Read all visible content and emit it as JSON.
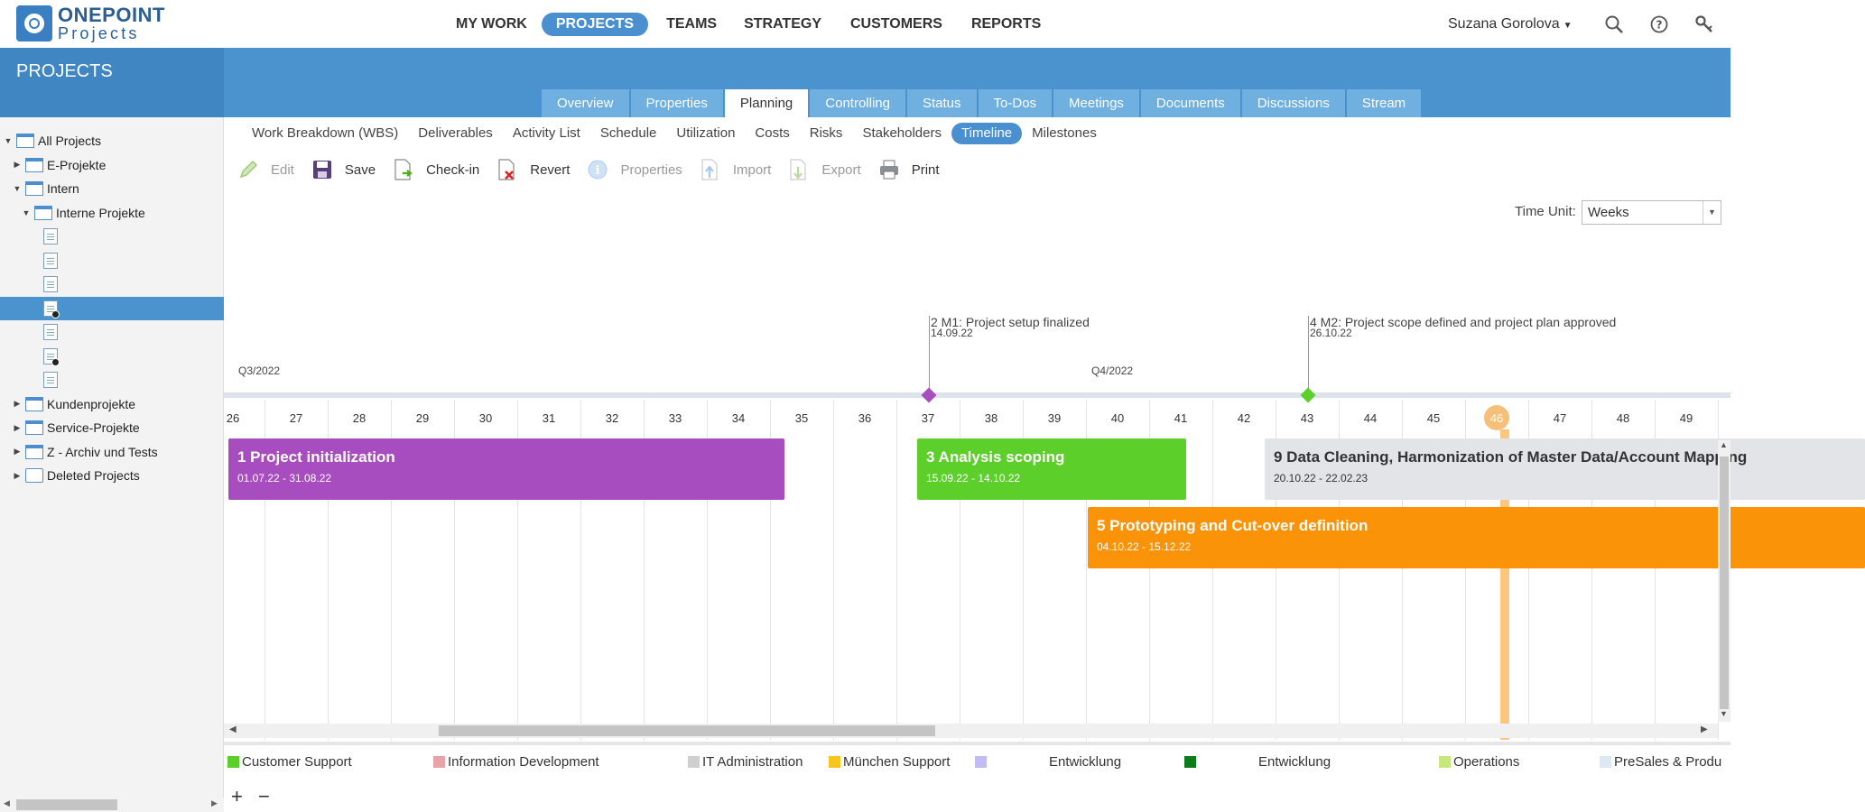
{
  "app": {
    "logo_top": "ONEPOINT",
    "logo_bottom": "Projects"
  },
  "nav": [
    {
      "label": "MY WORK",
      "active": false
    },
    {
      "label": "PROJECTS",
      "active": true
    },
    {
      "label": "TEAMS",
      "active": false
    },
    {
      "label": "STRATEGY",
      "active": false
    },
    {
      "label": "CUSTOMERS",
      "active": false
    },
    {
      "label": "REPORTS",
      "active": false
    }
  ],
  "user": {
    "name": "Suzana Gorolova"
  },
  "section_title": "PROJECTS",
  "tabs": [
    {
      "label": "Overview",
      "active": false
    },
    {
      "label": "Properties",
      "active": false
    },
    {
      "label": "Planning",
      "active": true
    },
    {
      "label": "Controlling",
      "active": false
    },
    {
      "label": "Status",
      "active": false
    },
    {
      "label": "To-Dos",
      "active": false
    },
    {
      "label": "Meetings",
      "active": false
    },
    {
      "label": "Documents",
      "active": false
    },
    {
      "label": "Discussions",
      "active": false
    },
    {
      "label": "Stream",
      "active": false
    }
  ],
  "subtabs": [
    {
      "label": "Work Breakdown (WBS)",
      "active": false
    },
    {
      "label": "Deliverables",
      "active": false
    },
    {
      "label": "Activity List",
      "active": false
    },
    {
      "label": "Schedule",
      "active": false
    },
    {
      "label": "Utilization",
      "active": false
    },
    {
      "label": "Costs",
      "active": false
    },
    {
      "label": "Risks",
      "active": false
    },
    {
      "label": "Stakeholders",
      "active": false
    },
    {
      "label": "Timeline",
      "active": true
    },
    {
      "label": "Milestones",
      "active": false
    }
  ],
  "toolbar": [
    {
      "label": "Edit",
      "icon": "pencil-icon",
      "enabled": false
    },
    {
      "label": "Save",
      "icon": "floppy-disk-icon",
      "enabled": true
    },
    {
      "label": "Check-in",
      "icon": "check-in-icon",
      "enabled": true
    },
    {
      "label": "Revert",
      "icon": "revert-icon",
      "enabled": true
    },
    {
      "label": "Properties",
      "icon": "info-icon",
      "enabled": false
    },
    {
      "label": "Import",
      "icon": "import-icon",
      "enabled": false
    },
    {
      "label": "Export",
      "icon": "export-icon",
      "enabled": false
    },
    {
      "label": "Print",
      "icon": "printer-icon",
      "enabled": true
    }
  ],
  "time_unit": {
    "label": "Time Unit:",
    "value": "Weeks"
  },
  "tree": [
    {
      "label": "All Projects",
      "level": 0,
      "expanded": true,
      "icon": "portfolio",
      "selected": false
    },
    {
      "label": "E-Projekte",
      "level": 1,
      "expanded": false,
      "icon": "portfolio",
      "selected": false
    },
    {
      "label": "Intern",
      "level": 1,
      "expanded": true,
      "icon": "portfolio",
      "selected": false
    },
    {
      "label": "Interne Projekte",
      "level": 2,
      "expanded": true,
      "icon": "portfolio",
      "selected": false
    },
    {
      "label": "",
      "level": 3,
      "icon": "project",
      "selected": false
    },
    {
      "label": "",
      "level": 3,
      "icon": "project",
      "selected": false
    },
    {
      "label": "",
      "level": 3,
      "icon": "project",
      "selected": false
    },
    {
      "label": "",
      "level": 3,
      "icon": "project-edit",
      "selected": true
    },
    {
      "label": "",
      "level": 3,
      "icon": "project",
      "selected": false
    },
    {
      "label": "",
      "level": 3,
      "icon": "project-locked",
      "selected": false
    },
    {
      "label": "",
      "level": 3,
      "icon": "project",
      "selected": false
    },
    {
      "label": "Kundenprojekte",
      "level": 1,
      "expanded": false,
      "icon": "portfolio",
      "selected": false
    },
    {
      "label": "Service-Projekte",
      "level": 1,
      "expanded": false,
      "icon": "portfolio",
      "selected": false
    },
    {
      "label": "Z - Archiv und Tests",
      "level": 1,
      "expanded": false,
      "icon": "portfolio",
      "selected": false
    },
    {
      "label": "Deleted Projects",
      "level": 1,
      "expanded": false,
      "icon": "deleted",
      "selected": false
    }
  ],
  "timeline": {
    "quarters": [
      {
        "label": "Q3/2022",
        "week": 26
      },
      {
        "label": "Q4/2022",
        "week": 39.5
      }
    ],
    "weeks": [
      "26",
      "27",
      "28",
      "29",
      "30",
      "31",
      "32",
      "33",
      "34",
      "35",
      "36",
      "37",
      "38",
      "39",
      "40",
      "41",
      "42",
      "43",
      "44",
      "45",
      "46",
      "47",
      "48",
      "49"
    ],
    "current_week": "46",
    "milestones": [
      {
        "name": "2 M1: Project setup finalized",
        "date": "14.09.22",
        "week": 37,
        "color": "#a64dbf"
      },
      {
        "name": "4 M2: Project scope defined and project plan approved",
        "date": "26.10.22",
        "week": 43,
        "color": "#5ccf2a"
      }
    ],
    "activities": [
      {
        "name": "1 Project initialization",
        "dates": "01.07.22 - 31.08.22",
        "start": 26.1,
        "end": 34.9,
        "row": 0,
        "color": "#a84dbf",
        "text": "#ffffff"
      },
      {
        "name": "3 Analysis scoping",
        "dates": "15.09.22 - 14.10.22",
        "start": 37.0,
        "end": 41.25,
        "row": 0,
        "color": "#5ccf2a",
        "text": "#ffffff"
      },
      {
        "name": "9 Data Cleaning, Harmonization of Master Data/Account Mapping",
        "dates": "20.10.22 - 22.02.23",
        "start": 42.5,
        "end": 52,
        "row": 0,
        "color": "#e2e4e7",
        "text": "#333333"
      },
      {
        "name": "5 Prototyping and Cut-over definition",
        "dates": "04.10.22 - 15.12.22",
        "start": 39.7,
        "end": 52,
        "row": 1,
        "color": "#fb9308",
        "text": "#ffffff"
      }
    ]
  },
  "legend": [
    {
      "label": "Customer Support",
      "color": "#5ccf2a"
    },
    {
      "label": "Information Development",
      "color": "#e8a3a8"
    },
    {
      "label": "IT Administration",
      "color": "#cfcfcf"
    },
    {
      "label": "München Support",
      "color": "#f7c51e"
    },
    {
      "label": "Entwicklung",
      "color": "#c2bdf0"
    },
    {
      "label": "Entwicklung",
      "color": "#0d7a1b"
    },
    {
      "label": "Operations",
      "color": "#c6e87a"
    },
    {
      "label": "PreSales & Produ",
      "color": "#dde8f3"
    }
  ],
  "zoom": {
    "in": "+",
    "out": "−"
  }
}
